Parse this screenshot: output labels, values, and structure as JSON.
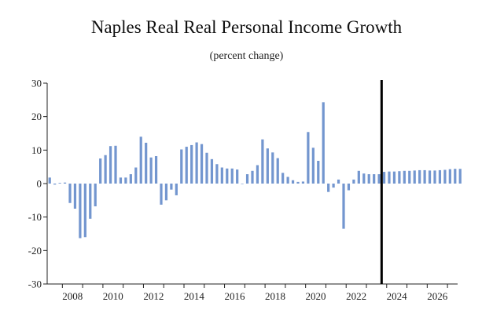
{
  "chart_data": {
    "type": "bar",
    "title": "Naples Real Real Personal Income Growth",
    "subtitle": "(percent change)",
    "xlabel": "",
    "ylabel": "",
    "ylim": [
      -30,
      30
    ],
    "yticks": [
      30,
      20,
      10,
      0,
      -10,
      -20,
      -30
    ],
    "xticks": [
      "2008",
      "2010",
      "2012",
      "2014",
      "2016",
      "2018",
      "2020",
      "2022",
      "2024",
      "2026"
    ],
    "bar_color": "#7396cf",
    "divider_color": "#000000",
    "divider_between_quarters": [
      "2023Q3",
      "2023Q4"
    ],
    "grid": false,
    "quarters_start": "2007Q2",
    "values": [
      1.8,
      -0.3,
      0.2,
      0.3,
      -5.8,
      -7.5,
      -16.3,
      -16.0,
      -10.5,
      -6.8,
      7.5,
      8.5,
      11.2,
      11.3,
      1.8,
      1.8,
      2.8,
      4.8,
      14.0,
      12.2,
      7.8,
      8.2,
      -6.3,
      -5.0,
      -1.8,
      -3.5,
      10.2,
      11.0,
      11.5,
      12.3,
      11.8,
      9.2,
      7.3,
      5.8,
      4.8,
      4.5,
      4.5,
      4.2,
      0.0,
      2.8,
      3.8,
      5.5,
      13.2,
      10.5,
      9.3,
      7.6,
      3.2,
      2.0,
      1.0,
      0.5,
      0.6,
      15.4,
      10.7,
      6.8,
      24.3,
      -2.5,
      -1.2,
      1.2,
      -13.5,
      -2.0,
      1.2,
      3.8,
      3.0,
      2.8,
      2.8,
      2.8,
      3.5,
      3.6,
      3.6,
      3.7,
      3.8,
      3.8,
      3.9,
      4.0,
      4.0,
      3.9,
      3.9,
      4.0,
      4.1,
      4.3,
      4.4,
      4.4
    ]
  }
}
